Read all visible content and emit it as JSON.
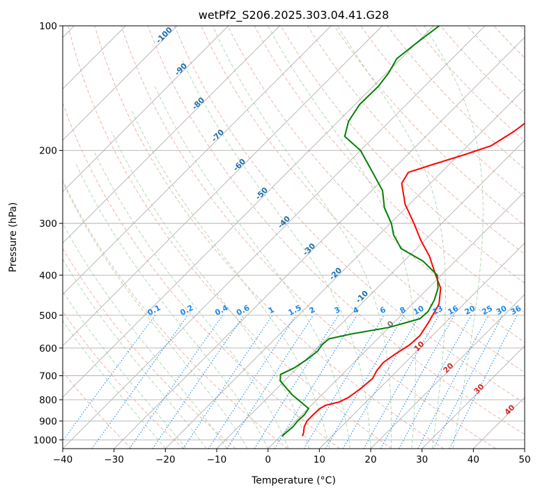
{
  "chart_data": {
    "type": "line",
    "subtype": "skew-t log-p diagram",
    "title": "wetPf2_S206.2025.303.04.41.G28",
    "xlabel": "Temperature (°C)",
    "ylabel": "Pressure (hPa)",
    "xlim": [
      -40,
      50
    ],
    "ylim": [
      1050,
      100
    ],
    "grid": true,
    "x_ticks": [
      -40,
      -30,
      -20,
      -10,
      0,
      10,
      20,
      30,
      40,
      50
    ],
    "x_tick_labels": [
      "−40",
      "−30",
      "−20",
      "−10",
      "0",
      "10",
      "20",
      "30",
      "40",
      "50"
    ],
    "y_ticks": [
      1000,
      900,
      800,
      700,
      600,
      500,
      400,
      300,
      200,
      100
    ],
    "y_tick_labels": [
      "1000",
      "900",
      "800",
      "700",
      "600",
      "500",
      "400",
      "300",
      "200",
      "100"
    ],
    "series": [
      {
        "name": "Temperature",
        "color": "#ff0000",
        "points": [
          {
            "p": 980,
            "t": 4.3
          },
          {
            "p": 960,
            "t": 3.8
          },
          {
            "p": 930,
            "t": 2.8
          },
          {
            "p": 900,
            "t": 2.2
          },
          {
            "p": 870,
            "t": 2.2
          },
          {
            "p": 840,
            "t": 2.3
          },
          {
            "p": 825,
            "t": 2.8
          },
          {
            "p": 810,
            "t": 4.8
          },
          {
            "p": 790,
            "t": 5.7
          },
          {
            "p": 750,
            "t": 6.4
          },
          {
            "p": 710,
            "t": 6.7
          },
          {
            "p": 680,
            "t": 6.0
          },
          {
            "p": 650,
            "t": 5.7
          },
          {
            "p": 620,
            "t": 6.4
          },
          {
            "p": 590,
            "t": 7.4
          },
          {
            "p": 560,
            "t": 7.6
          },
          {
            "p": 520,
            "t": 6.7
          },
          {
            "p": 470,
            "t": 5.2
          },
          {
            "p": 430,
            "t": 2.4
          },
          {
            "p": 400,
            "t": -1.1
          },
          {
            "p": 360,
            "t": -6.0
          },
          {
            "p": 330,
            "t": -10.7
          },
          {
            "p": 300,
            "t": -15.4
          },
          {
            "p": 270,
            "t": -20.8
          },
          {
            "p": 240,
            "t": -25.6
          },
          {
            "p": 226,
            "t": -26.4
          },
          {
            "p": 216,
            "t": -23.1
          },
          {
            "p": 205,
            "t": -19.0
          },
          {
            "p": 195,
            "t": -15.5
          },
          {
            "p": 180,
            "t": -13.8
          },
          {
            "p": 165,
            "t": -12.8
          },
          {
            "p": 150,
            "t": -13.3
          },
          {
            "p": 135,
            "t": -14.0
          },
          {
            "p": 125,
            "t": -13.9
          },
          {
            "p": 115,
            "t": -12.0
          },
          {
            "p": 108,
            "t": -11.7
          },
          {
            "p": 100,
            "t": -11.1
          }
        ]
      },
      {
        "name": "Dew point",
        "color": "#008000",
        "points": [
          {
            "p": 980,
            "t": 0.3
          },
          {
            "p": 960,
            "t": 0.4
          },
          {
            "p": 930,
            "t": 0.6
          },
          {
            "p": 900,
            "t": 0.4
          },
          {
            "p": 870,
            "t": 0.5
          },
          {
            "p": 840,
            "t": 0.1
          },
          {
            "p": 810,
            "t": -2.7
          },
          {
            "p": 780,
            "t": -5.6
          },
          {
            "p": 750,
            "t": -8.2
          },
          {
            "p": 720,
            "t": -10.8
          },
          {
            "p": 695,
            "t": -12.0
          },
          {
            "p": 670,
            "t": -10.6
          },
          {
            "p": 640,
            "t": -9.8
          },
          {
            "p": 610,
            "t": -9.3
          },
          {
            "p": 590,
            "t": -9.7
          },
          {
            "p": 570,
            "t": -9.5
          },
          {
            "p": 555,
            "t": -6.1
          },
          {
            "p": 535,
            "t": 0.0
          },
          {
            "p": 510,
            "t": 4.3
          },
          {
            "p": 490,
            "t": 4.5
          },
          {
            "p": 460,
            "t": 3.5
          },
          {
            "p": 430,
            "t": 1.9
          },
          {
            "p": 400,
            "t": -0.8
          },
          {
            "p": 370,
            "t": -6.3
          },
          {
            "p": 345,
            "t": -13.0
          },
          {
            "p": 320,
            "t": -17.1
          },
          {
            "p": 300,
            "t": -19.8
          },
          {
            "p": 275,
            "t": -24.2
          },
          {
            "p": 250,
            "t": -27.9
          },
          {
            "p": 225,
            "t": -33.6
          },
          {
            "p": 200,
            "t": -40.0
          },
          {
            "p": 185,
            "t": -45.8
          },
          {
            "p": 170,
            "t": -48.0
          },
          {
            "p": 155,
            "t": -49.1
          },
          {
            "p": 140,
            "t": -49.0
          },
          {
            "p": 130,
            "t": -49.6
          },
          {
            "p": 120,
            "t": -50.8
          },
          {
            "p": 110,
            "t": -50.0
          },
          {
            "p": 100,
            "t": -48.9
          }
        ]
      }
    ],
    "dry_adiabat_labels": [
      "-100",
      "-90",
      "-80",
      "-70",
      "-60",
      "-50",
      "-40",
      "-30",
      "-20",
      "-10"
    ],
    "freezing_label": "0",
    "moist_adiabat_labels": [
      "10",
      "20",
      "30",
      "40"
    ],
    "mixing_ratio_labels": [
      "0.1",
      "0.2",
      "0.4",
      "0.6",
      "1",
      "1.5",
      "2",
      "3",
      "4",
      "6",
      "8",
      "10",
      "13",
      "16",
      "20",
      "25",
      "30",
      "36"
    ]
  },
  "colors": {
    "temperature": "#ff0000",
    "dewpoint": "#008000",
    "isotherm_grid": "#b0b0b0",
    "dry_adiabat": "#e0a090",
    "moist_adiabat": "#9fcf9f",
    "mixing_ratio": "#1e88e5",
    "dry_label": "#1f6fa8",
    "moist_label": "#d62728"
  }
}
